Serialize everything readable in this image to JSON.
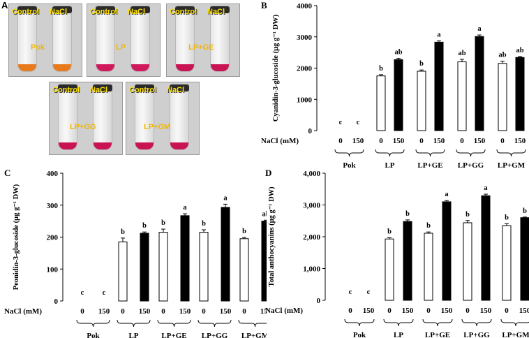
{
  "panel_a": {
    "letter": "A",
    "photos": [
      {
        "treatment": "Pok",
        "left": "Control",
        "right": "NaCl",
        "liquid": "#e87a1e"
      },
      {
        "treatment": "LP",
        "left": "Control",
        "right": "NaCl",
        "liquid": "#d0195c"
      },
      {
        "treatment": "LP+GE",
        "left": "Control",
        "right": "NaCl",
        "liquid": "#c91454"
      },
      {
        "treatment": "LP+GG",
        "left": "Control",
        "right": "NaCl",
        "liquid": "#c91454"
      },
      {
        "treatment": "LP+GM",
        "left": "Control",
        "right": "NaCl",
        "liquid": "#c91454"
      }
    ]
  },
  "chart_data": [
    {
      "panel": "B",
      "type": "bar",
      "ylabel_main": "Cyanidin-3-glucoside",
      "ylabel_unit": "(µg g⁻¹ DW)",
      "ylim": [
        0,
        4000
      ],
      "yticks": [
        "0",
        "1000",
        "2000",
        "3000",
        "4000"
      ],
      "xlabel": "NaCl (mM)",
      "nacl_levels": [
        "0",
        "150"
      ],
      "groups": [
        "Pok",
        "LP",
        "LP+GE",
        "LP+GG",
        "LP+GM"
      ],
      "series": [
        {
          "name": "0",
          "fill": "#ffffff",
          "values": [
            0,
            1750,
            1900,
            2200,
            2150
          ],
          "errors": [
            0,
            40,
            40,
            80,
            70
          ],
          "letters": [
            "c",
            "b",
            "b",
            "ab",
            "ab"
          ]
        },
        {
          "name": "150",
          "fill": "#000000",
          "values": [
            0,
            2270,
            2830,
            3010,
            2340
          ],
          "errors": [
            0,
            40,
            40,
            50,
            30
          ],
          "letters": [
            "c",
            "ab",
            "a",
            "a",
            "ab"
          ]
        }
      ]
    },
    {
      "panel": "C",
      "type": "bar",
      "ylabel_main": "Peonidin-3-glucoside",
      "ylabel_unit": "(µg g⁻¹ DW)",
      "ylim": [
        0,
        400
      ],
      "yticks": [
        "0",
        "100",
        "200",
        "300",
        "400"
      ],
      "xlabel": "NaCl (mM)",
      "nacl_levels": [
        "0",
        "150"
      ],
      "groups": [
        "Pok",
        "LP",
        "LP+GE",
        "LP+GG",
        "LP+GM"
      ],
      "series": [
        {
          "name": "0",
          "fill": "#ffffff",
          "values": [
            0,
            185,
            215,
            215,
            195
          ],
          "errors": [
            0,
            12,
            10,
            8,
            4
          ],
          "letters": [
            "c",
            "b",
            "b",
            "b",
            "b"
          ]
        },
        {
          "name": "150",
          "fill": "#000000",
          "values": [
            0,
            212,
            267,
            293,
            250
          ],
          "errors": [
            0,
            4,
            6,
            10,
            3
          ],
          "letters": [
            "c",
            "b",
            "a",
            "a",
            "ab"
          ]
        }
      ]
    },
    {
      "panel": "D",
      "type": "bar",
      "ylabel_main": "Total anthocyanins",
      "ylabel_unit": "(µg g⁻¹ DW)",
      "ylim": [
        0,
        4000
      ],
      "yticks": [
        "0",
        "1,000",
        "2,000",
        "3,000",
        "4,000"
      ],
      "xlabel": "NaCl (mM)",
      "nacl_levels": [
        "0",
        "150"
      ],
      "groups": [
        "Pok",
        "LP",
        "LP+GE",
        "LP+GG",
        "LP+GM"
      ],
      "series": [
        {
          "name": "0",
          "fill": "#ffffff",
          "values": [
            0,
            1930,
            2110,
            2440,
            2350
          ],
          "errors": [
            0,
            40,
            40,
            70,
            60
          ],
          "letters": [
            "c",
            "b",
            "b",
            "b",
            "b"
          ]
        },
        {
          "name": "150",
          "fill": "#000000",
          "values": [
            0,
            2480,
            3100,
            3290,
            2600
          ],
          "errors": [
            0,
            50,
            40,
            50,
            20
          ],
          "letters": [
            "c",
            "b",
            "a",
            "a",
            "b"
          ]
        }
      ]
    }
  ]
}
